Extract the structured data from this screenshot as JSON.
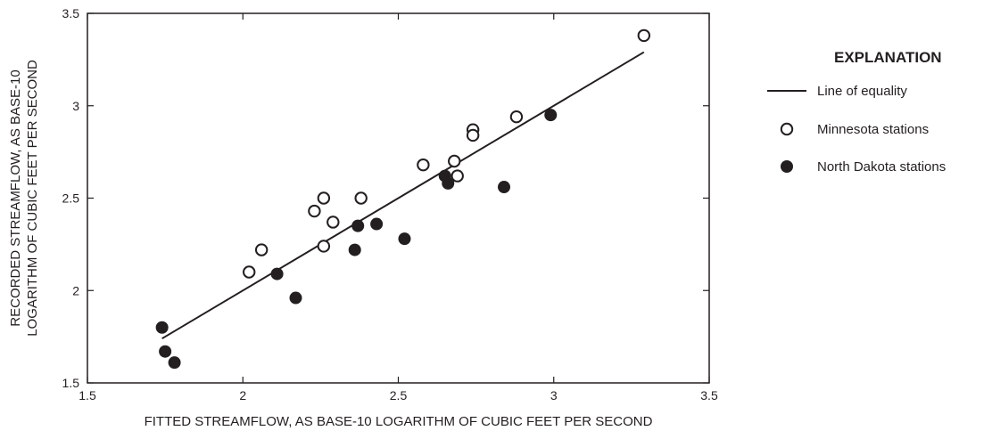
{
  "chart_data": {
    "type": "scatter",
    "xlabel": "FITTED STREAMFLOW, AS BASE-10 LOGARITHM OF CUBIC FEET PER SECOND",
    "ylabel_lines": [
      "RECORDED STREAMFLOW, AS BASE-10",
      "LOGARITHM OF CUBIC FEET PER SECOND"
    ],
    "xlim": [
      1.5,
      3.5
    ],
    "ylim": [
      1.5,
      3.5
    ],
    "xticks": [
      "1.5",
      "2",
      "2.5",
      "3",
      "3.5"
    ],
    "yticks": [
      "1.5",
      "2",
      "2.5",
      "3",
      "3.5"
    ],
    "grid": false,
    "legend": {
      "title": "EXPLANATION",
      "placement": "right",
      "items": [
        "Line of equality",
        "Minnesota stations",
        "North Dakota stations"
      ]
    },
    "line_of_equality": {
      "name": "Line of equality",
      "x": [
        1.74,
        3.29
      ],
      "y": [
        1.74,
        3.29
      ]
    },
    "series": [
      {
        "name": "Minnesota stations",
        "marker": "open-circle",
        "x": [
          2.02,
          2.06,
          2.23,
          2.26,
          2.26,
          2.29,
          2.38,
          2.58,
          2.68,
          2.69,
          2.74,
          2.74,
          2.88,
          3.29
        ],
        "y": [
          2.1,
          2.22,
          2.43,
          2.5,
          2.24,
          2.37,
          2.5,
          2.68,
          2.7,
          2.62,
          2.87,
          2.84,
          2.94,
          3.38
        ]
      },
      {
        "name": "North Dakota stations",
        "marker": "filled-circle",
        "x": [
          1.74,
          1.75,
          1.78,
          2.11,
          2.17,
          2.36,
          2.37,
          2.43,
          2.52,
          2.65,
          2.66,
          2.84,
          2.99
        ],
        "y": [
          1.8,
          1.67,
          1.61,
          2.09,
          1.96,
          2.22,
          2.35,
          2.36,
          2.28,
          2.62,
          2.58,
          2.56,
          2.95
        ]
      }
    ]
  },
  "colors": {
    "ink": "#231f20",
    "background": "#ffffff"
  }
}
